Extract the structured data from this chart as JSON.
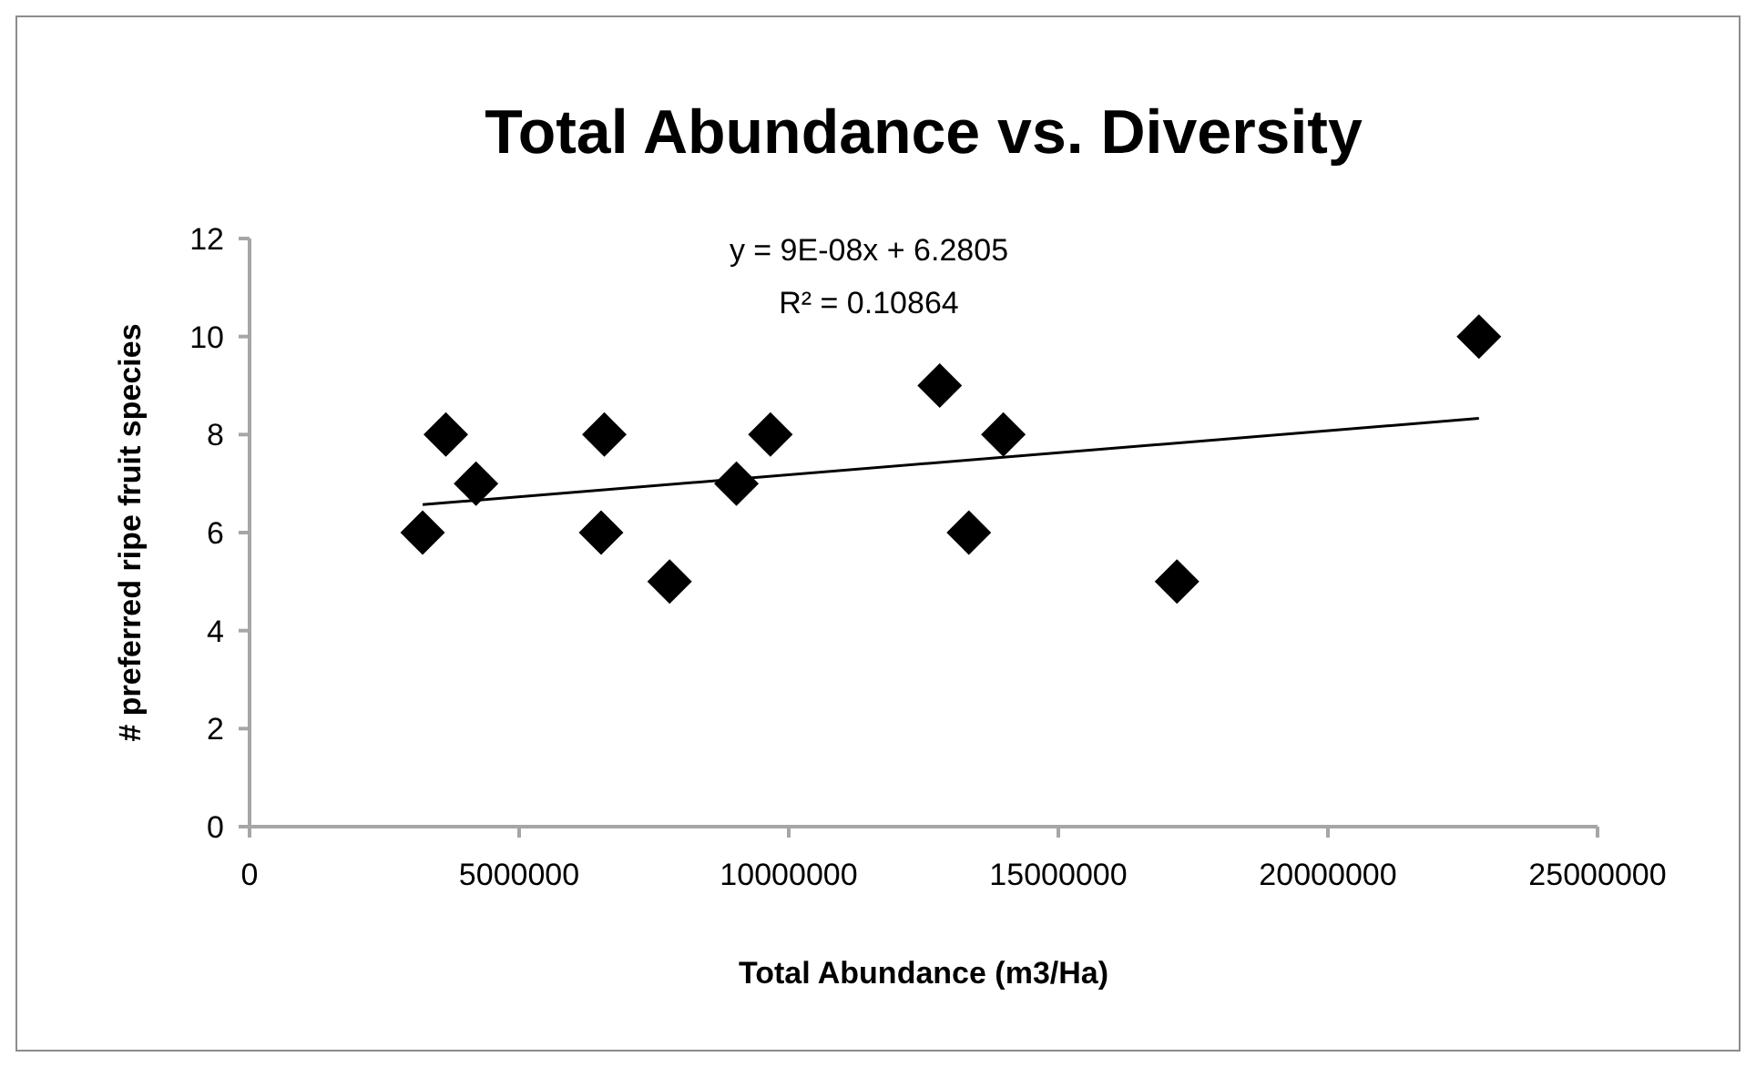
{
  "chart_data": {
    "type": "scatter",
    "title": "Total Abundance vs. Diversity",
    "xlabel": "Total Abundance (m3/Ha)",
    "ylabel": "# preferred ripe fruit species",
    "xlim": [
      0,
      25000000
    ],
    "xticks": [
      0,
      5000000,
      10000000,
      15000000,
      20000000,
      25000000
    ],
    "ylim": [
      0,
      12
    ],
    "yticks": [
      0,
      2,
      4,
      6,
      8,
      10,
      12
    ],
    "grid": false,
    "marker": "diamond",
    "series": [
      {
        "color": "#000000",
        "x": [
          3210000,
          3640000,
          4200000,
          6580000,
          6520000,
          7790000,
          9030000,
          9660000,
          12800000,
          13980000,
          13340000,
          17200000,
          22800000
        ],
        "values": [
          6,
          8,
          7,
          8,
          6,
          5,
          7,
          8,
          9,
          8,
          6,
          5,
          10
        ]
      },
      {
        "type": "line",
        "color": "#000000",
        "marker": "none",
        "line_style": "solid",
        "x": [
          3210000,
          22800000
        ],
        "values": [
          6.57,
          8.33
        ]
      }
    ],
    "annotations": [
      "y = 9E-08x + 6.2805",
      "R² = 0.10864"
    ]
  }
}
